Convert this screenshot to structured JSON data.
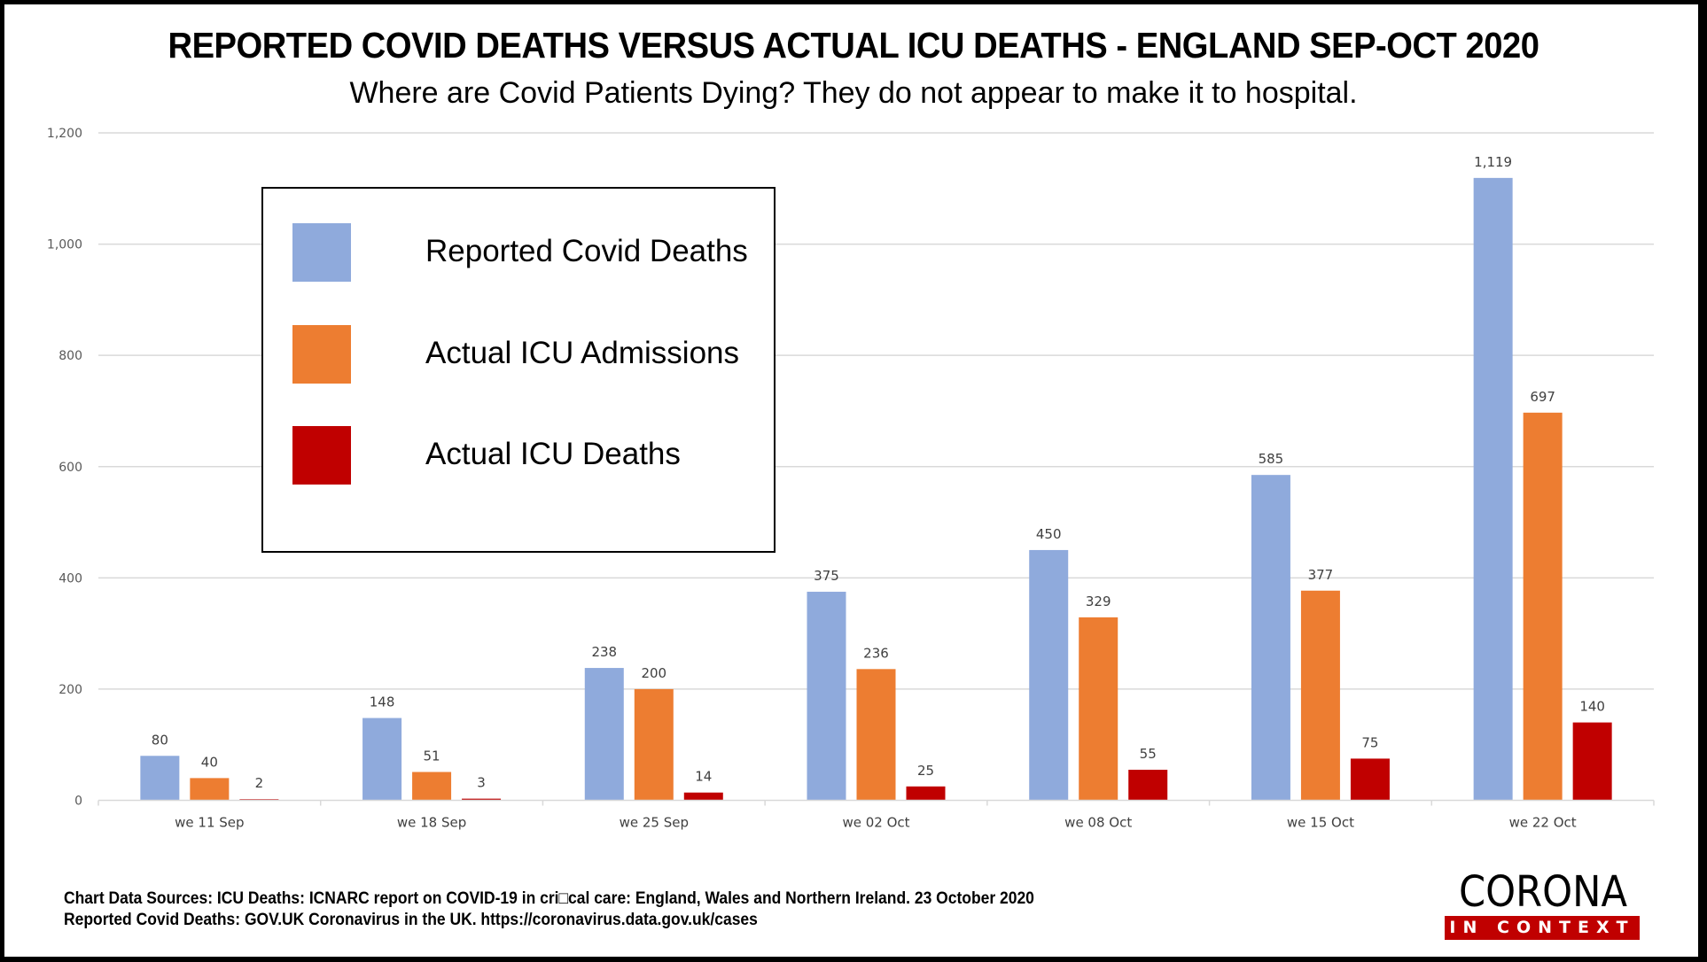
{
  "header": {
    "title": "REPORTED COVID DEATHS VERSUS ACTUAL ICU DEATHS - ENGLAND SEP-OCT 2020",
    "subtitle": "Where are Covid Patients Dying?  They do not appear to make it to hospital."
  },
  "chart_data": {
    "type": "bar",
    "title": "REPORTED COVID DEATHS VERSUS ACTUAL ICU DEATHS - ENGLAND SEP-OCT 2020",
    "subtitle": "Where are Covid Patients Dying?  They do not appear to make it to hospital.",
    "xlabel": "",
    "ylabel": "",
    "categories": [
      "we 11 Sep",
      "we 18 Sep",
      "we 25 Sep",
      "we 02 Oct",
      "we 08 Oct",
      "we 15 Oct",
      "we 22 Oct"
    ],
    "series": [
      {
        "name": "Reported Covid Deaths",
        "color": "#8faadc",
        "values": [
          80,
          148,
          238,
          375,
          450,
          585,
          1119
        ],
        "labels": [
          "80",
          "148",
          "238",
          "375",
          "450",
          "585",
          "1,119"
        ]
      },
      {
        "name": "Actual ICU Admissions",
        "color": "#ed7d31",
        "values": [
          40,
          51,
          200,
          236,
          329,
          377,
          697
        ],
        "labels": [
          "40",
          "51",
          "200",
          "236",
          "329",
          "377",
          "697"
        ]
      },
      {
        "name": "Actual ICU Deaths",
        "color": "#c00000",
        "values": [
          2,
          3,
          14,
          25,
          55,
          75,
          140
        ],
        "labels": [
          "2",
          "3",
          "14",
          "25",
          "55",
          "75",
          "140"
        ]
      }
    ],
    "ylim": [
      0,
      1200
    ],
    "yticks": [
      0,
      200,
      400,
      600,
      800,
      1000,
      1200
    ],
    "ytick_labels": [
      "0",
      "200",
      "400",
      "600",
      "800",
      "1,000",
      "1,200"
    ],
    "grid": true,
    "legend_position": "top-left",
    "data_labels": true
  },
  "legend": {
    "items": [
      {
        "label": "Reported Covid Deaths",
        "color": "#8faadc"
      },
      {
        "label": "Actual ICU Admissions",
        "color": "#ed7d31"
      },
      {
        "label": "Actual ICU Deaths",
        "color": "#c00000"
      }
    ]
  },
  "footer": {
    "line1": "Chart Data Sources:  ICU Deaths: ICNARC report on COVID-19 in cri□cal care: England, Wales and Northern Ireland. 23 October 2020",
    "line2": "Reported Covid Deaths: GOV.UK Coronavirus in the UK.  https://coronavirus.data.gov.uk/cases"
  },
  "logo": {
    "main": "CORONA",
    "sub": "IN CONTEXT",
    "bar_color": "#c00000"
  }
}
